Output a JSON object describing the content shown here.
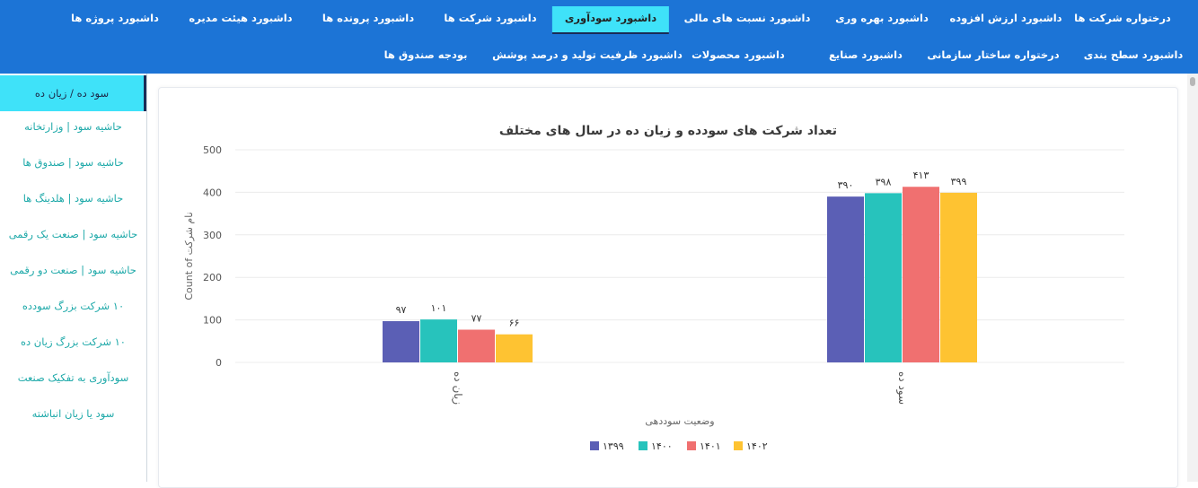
{
  "topnav": {
    "row1": [
      {
        "label": "درختواره شرکت ها"
      },
      {
        "label": "داشبورد ارزش افزوده"
      },
      {
        "label": "داشبورد بهره وری"
      },
      {
        "label": "داشبورد نسبت های مالی"
      },
      {
        "label": "داشبورد سودآوری",
        "active": true
      },
      {
        "label": "داشبورد شرکت ها"
      },
      {
        "label": "داشبورد پرونده ها"
      },
      {
        "label": "داشبورد هیئت مدیره"
      },
      {
        "label": "داشبورد پروژه ها"
      }
    ],
    "row2": [
      {
        "label": "داشبورد سطح بندی"
      },
      {
        "label": "درختواره ساختار سازمانی"
      },
      {
        "label": "داشبورد صنایع"
      },
      {
        "label": "داشبورد محصولات"
      },
      {
        "label": "داشبورد ظرفیت تولید و درصد پوشش"
      },
      {
        "label": "بودجه صندوق ها"
      }
    ]
  },
  "sidebar": {
    "items": [
      {
        "label": "سود ده / زیان ده",
        "active": true
      },
      {
        "label": "حاشیه سود | وزارتخانه"
      },
      {
        "label": "حاشیه سود | صندوق ها"
      },
      {
        "label": "حاشیه سود | هلدینگ ها"
      },
      {
        "label": "حاشیه سود | صنعت یک رقمی"
      },
      {
        "label": "حاشیه سود | صنعت دو رقمی"
      },
      {
        "label": "۱۰ شرکت بزرگ سودده"
      },
      {
        "label": "۱۰ شرکت بزرگ زیان ده"
      },
      {
        "label": "سودآوری به تفکیک صنعت"
      },
      {
        "label": "سود یا زیان انباشته"
      }
    ]
  },
  "chart_data": {
    "type": "bar",
    "title": "تعداد شرکت های سودده و زیان ده در سال های مختلف",
    "xlabel": "وضعیت سوددهی",
    "ylabel": "Count of نام شرکت",
    "categories": [
      "زیان ده",
      "سود ده"
    ],
    "series": [
      {
        "name": "۱۳۹۹",
        "color": "#5b5fb5",
        "values": [
          97,
          390
        ],
        "labels": [
          "۹۷",
          "۳۹۰"
        ]
      },
      {
        "name": "۱۴۰۰",
        "color": "#27c3bc",
        "values": [
          101,
          398
        ],
        "labels": [
          "۱۰۱",
          "۳۹۸"
        ]
      },
      {
        "name": "۱۴۰۱",
        "color": "#f07070",
        "values": [
          77,
          413
        ],
        "labels": [
          "۷۷",
          "۴۱۳"
        ]
      },
      {
        "name": "۱۴۰۲",
        "color": "#fec332",
        "values": [
          66,
          399
        ],
        "labels": [
          "۶۶",
          "۳۹۹"
        ]
      }
    ],
    "yticks": [
      "0",
      "100",
      "200",
      "300",
      "400",
      "500"
    ],
    "ylim": [
      0,
      500
    ],
    "grid": true,
    "legend": "bottom"
  }
}
